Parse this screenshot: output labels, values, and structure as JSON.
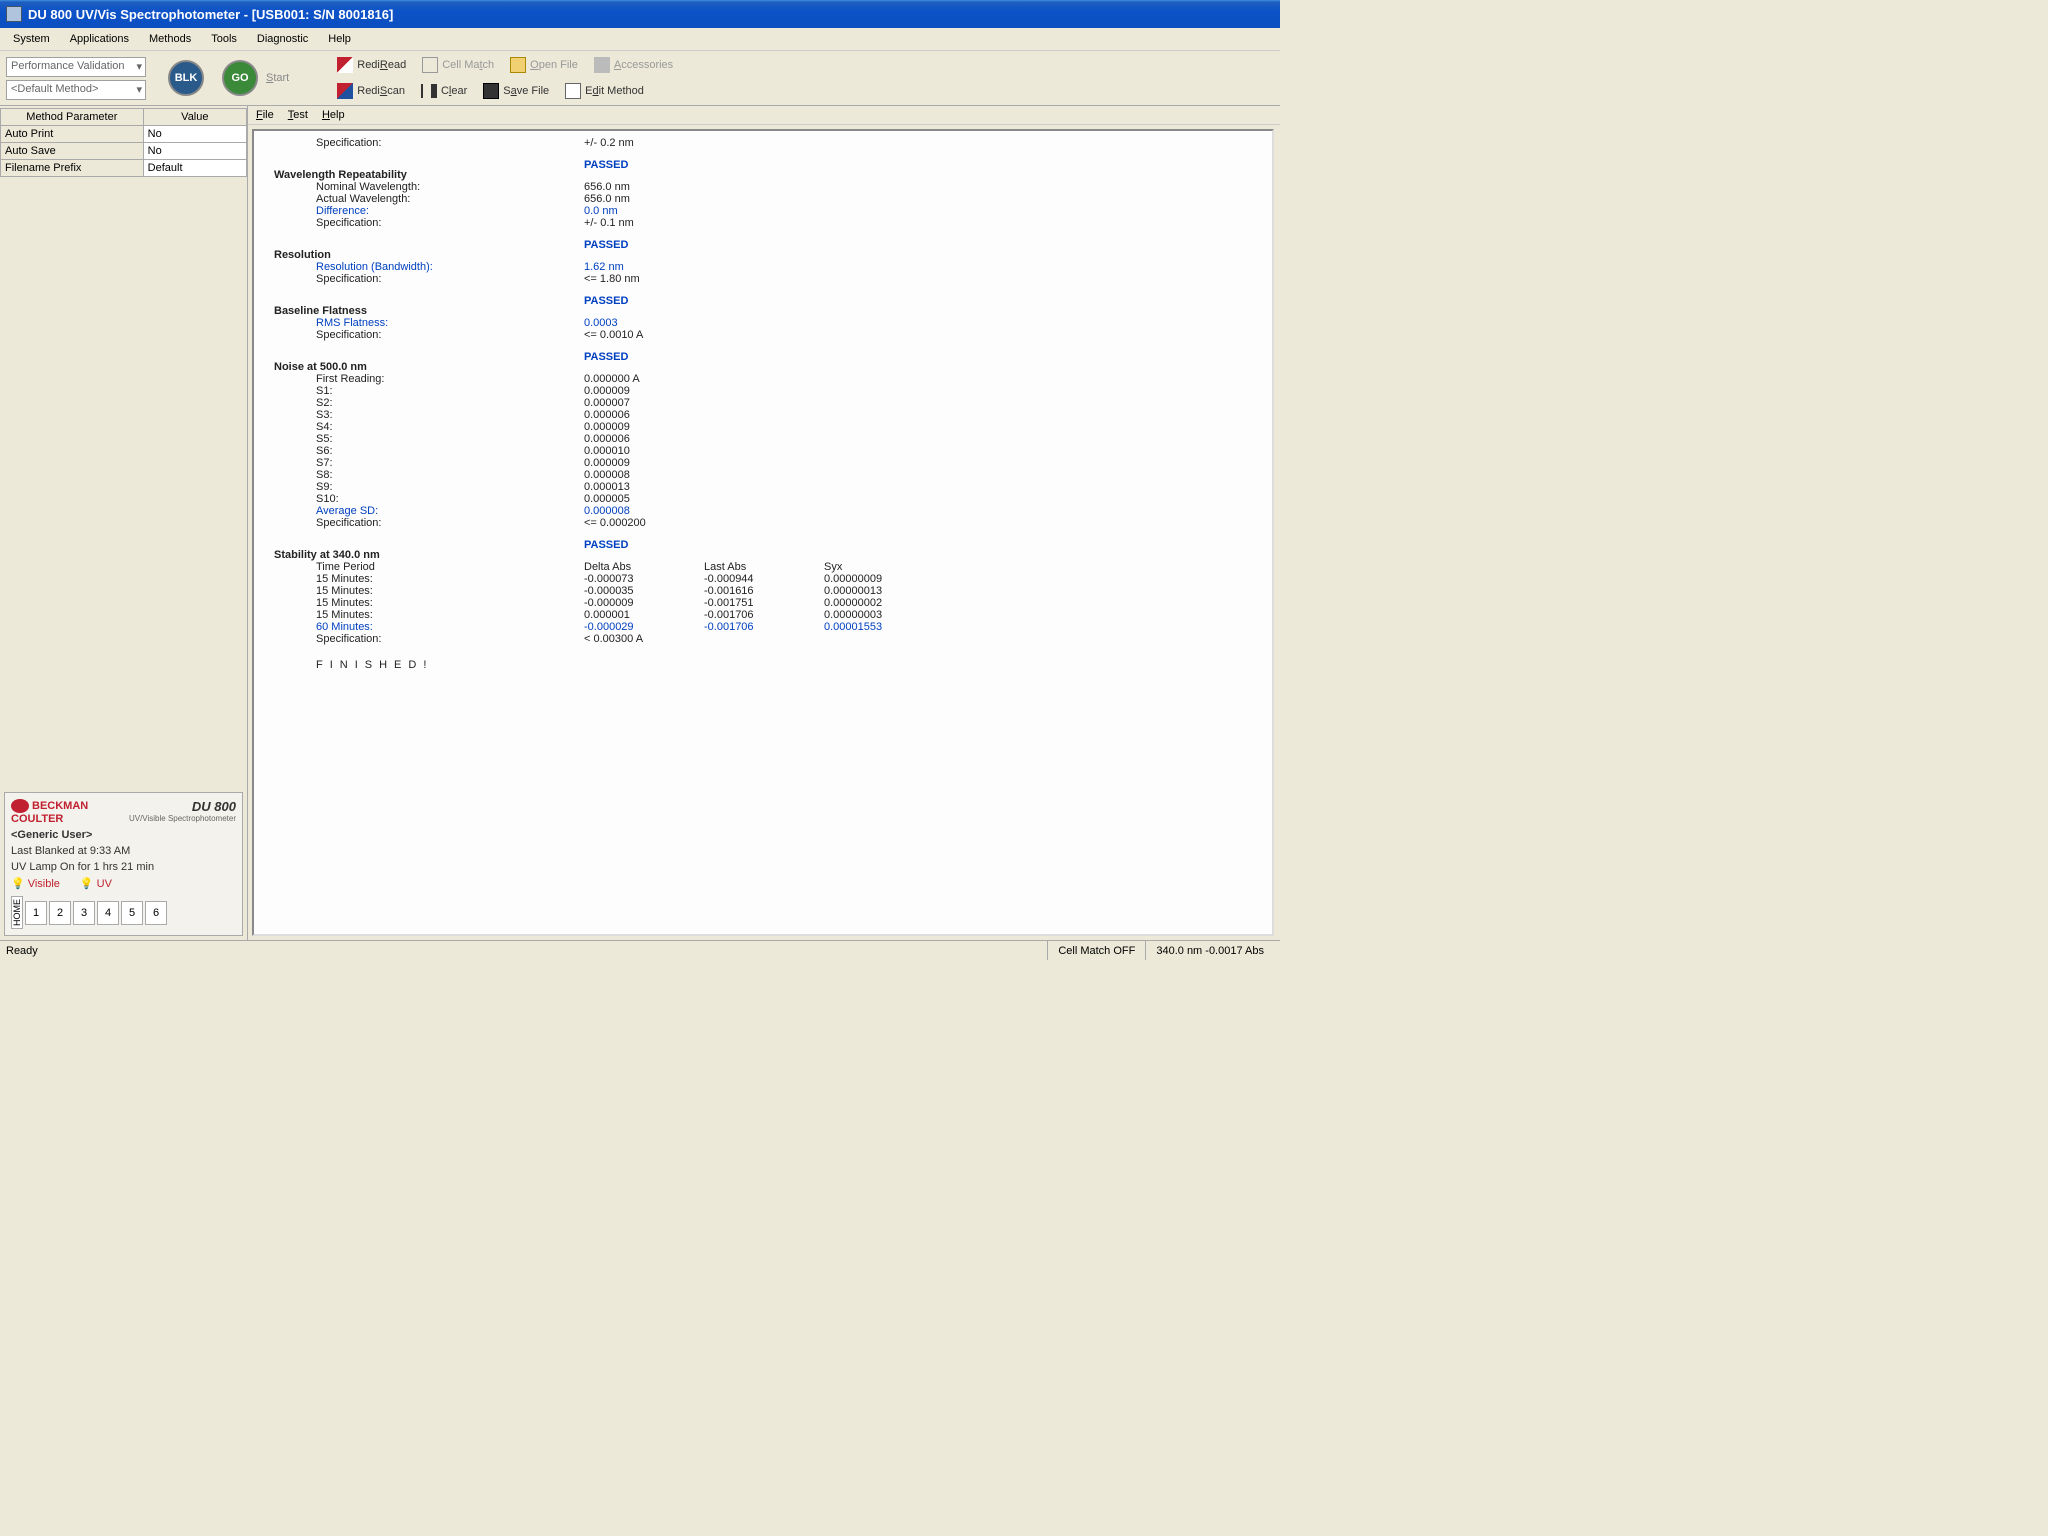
{
  "window": {
    "title": "DU 800 UV/Vis Spectrophotometer - [USB001: S/N 8001816]"
  },
  "menubar": [
    "System",
    "Applications",
    "Methods",
    "Tools",
    "Diagnostic",
    "Help"
  ],
  "dropdowns": {
    "mode": "Performance Validation",
    "method": "<Default Method>"
  },
  "toolbar": {
    "blk": "BLK",
    "go": "GO",
    "start": "Start",
    "rediread": "RediRead",
    "cellmatch": "Cell Match",
    "openfile": "Open File",
    "accessories": "Accessories",
    "rediscan": "RediScan",
    "clear": "Clear",
    "savefile": "Save File",
    "editmethod": "Edit Method"
  },
  "params": {
    "headers": [
      "Method Parameter",
      "Value"
    ],
    "rows": [
      [
        "Auto Print",
        "No"
      ],
      [
        "Auto Save",
        "No"
      ],
      [
        "Filename Prefix",
        "Default"
      ]
    ]
  },
  "brand": {
    "company1": "BECKMAN",
    "company2": "COULTER",
    "model": "DU 800",
    "modelsub": "UV/Visible Spectrophotometer",
    "user": "<Generic User>",
    "blanked": "Last Blanked at 9:33 AM",
    "lamp": "UV Lamp On for 1 hrs 21 min",
    "vis": "Visible",
    "uv": "UV",
    "cells": [
      "1",
      "2",
      "3",
      "4",
      "5",
      "6"
    ],
    "home": "HOME"
  },
  "submenu": [
    "File",
    "Test",
    "Help"
  ],
  "report": {
    "top": {
      "spec_label": "Specification:",
      "spec_val": "+/- 0.2 nm"
    },
    "wr": {
      "title": "Wavelength Repeatability",
      "status": "PASSED",
      "rows": [
        [
          "Nominal Wavelength:",
          "656.0 nm",
          ""
        ],
        [
          "Actual Wavelength:",
          "656.0 nm",
          ""
        ],
        [
          "Difference:",
          "0.0 nm",
          "blue"
        ],
        [
          "Specification:",
          "+/- 0.1 nm",
          ""
        ]
      ]
    },
    "res": {
      "title": "Resolution",
      "status": "PASSED",
      "rows": [
        [
          "Resolution (Bandwidth):",
          "1.62 nm",
          "blue"
        ],
        [
          "Specification:",
          "<=  1.80 nm",
          ""
        ]
      ]
    },
    "bf": {
      "title": "Baseline Flatness",
      "status": "PASSED",
      "rows": [
        [
          "RMS Flatness:",
          "0.0003",
          "blue"
        ],
        [
          "Specification:",
          "<= 0.0010 A",
          ""
        ]
      ]
    },
    "noise": {
      "title": "Noise at 500.0 nm",
      "status": "PASSED",
      "rows": [
        [
          "First Reading:",
          "0.000000 A",
          ""
        ],
        [
          "S1:",
          "0.000009",
          ""
        ],
        [
          "S2:",
          "0.000007",
          ""
        ],
        [
          "S3:",
          "0.000006",
          ""
        ],
        [
          "S4:",
          "0.000009",
          ""
        ],
        [
          "S5:",
          "0.000006",
          ""
        ],
        [
          "S6:",
          "0.000010",
          ""
        ],
        [
          "S7:",
          "0.000009",
          ""
        ],
        [
          "S8:",
          "0.000008",
          ""
        ],
        [
          "S9:",
          "0.000013",
          ""
        ],
        [
          "S10:",
          "0.000005",
          ""
        ],
        [
          "Average SD:",
          "0.000008",
          "blue"
        ],
        [
          "Specification:",
          "<= 0.000200",
          ""
        ]
      ]
    },
    "stab": {
      "title": "Stability at 340.0 nm",
      "status": "PASSED",
      "head": [
        "Time Period",
        "Delta Abs",
        "Last Abs",
        "Syx"
      ],
      "rows": [
        [
          "15 Minutes:",
          "-0.000073",
          "-0.000944",
          "0.00000009",
          ""
        ],
        [
          "15 Minutes:",
          "-0.000035",
          "-0.001616",
          "0.00000013",
          ""
        ],
        [
          "15 Minutes:",
          "-0.000009",
          "-0.001751",
          "0.00000002",
          ""
        ],
        [
          "15 Minutes:",
          " 0.000001",
          "-0.001706",
          "0.00000003",
          ""
        ],
        [
          "60 Minutes:",
          "-0.000029",
          "-0.001706",
          "0.00001553",
          "blue"
        ]
      ],
      "spec": [
        "Specification:",
        "< 0.00300 A"
      ]
    },
    "finished": "FINISHED!"
  },
  "status": {
    "ready": "Ready",
    "cellmatch": "Cell Match OFF",
    "reading": "340.0 nm  -0.0017 Abs"
  }
}
